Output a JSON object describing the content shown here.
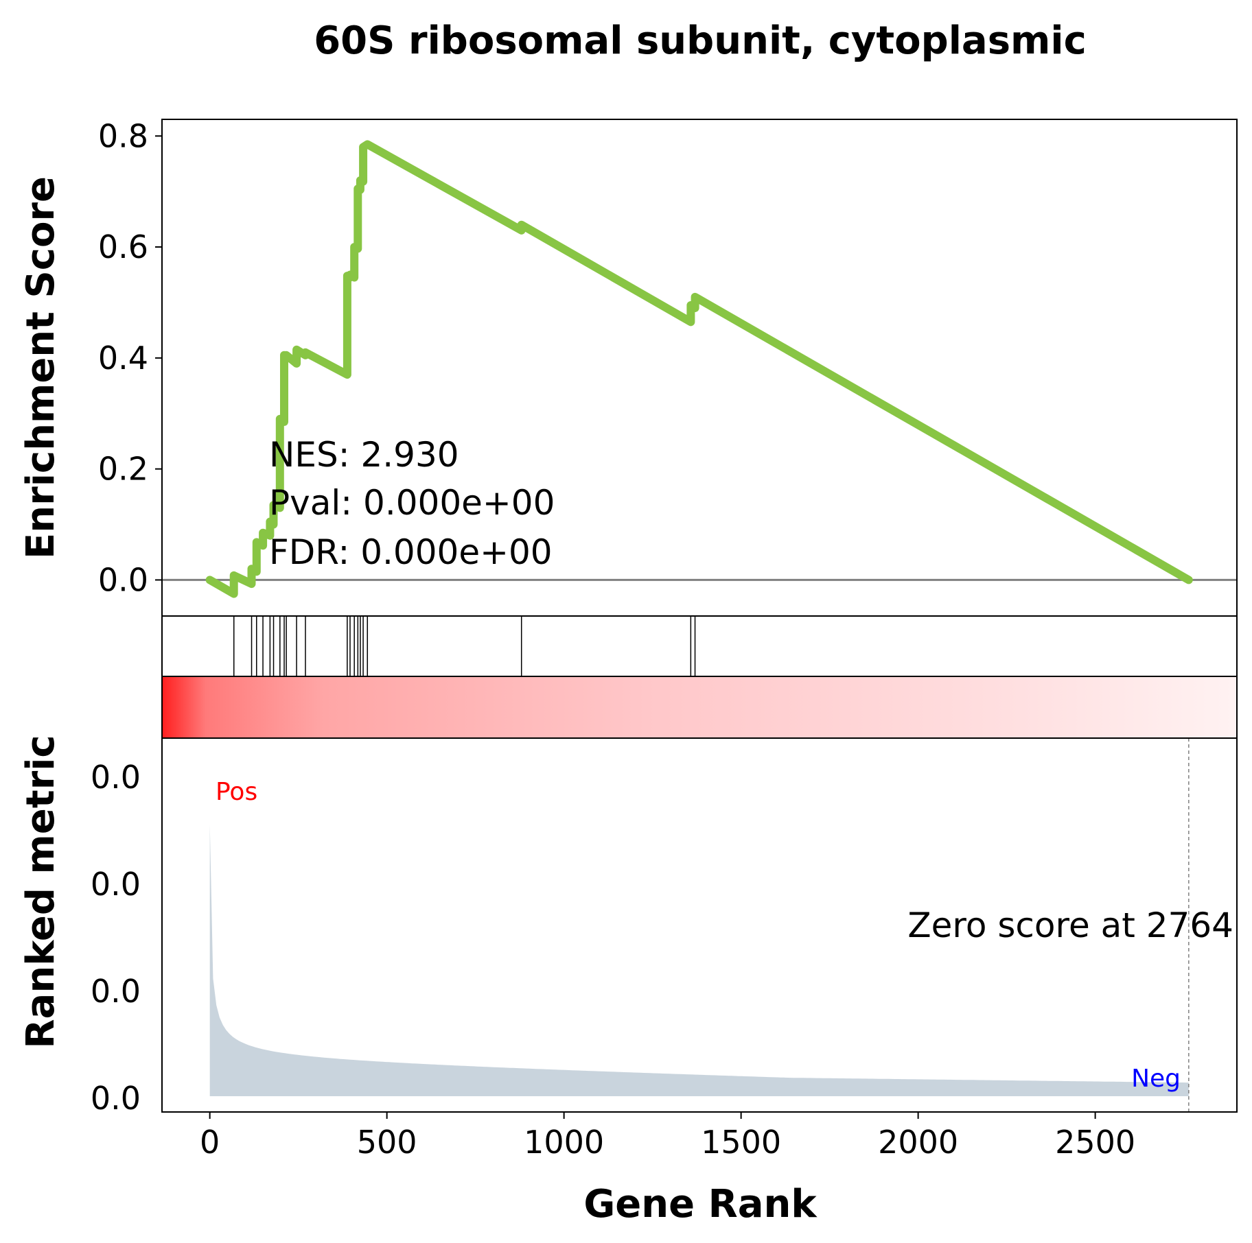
{
  "chart_data": {
    "type": "line",
    "title": "60S ribosomal subunit, cytoplasmic",
    "xlabel": "Gene Rank",
    "xlim": [
      -135,
      2900
    ],
    "x_ticks": [
      0,
      500,
      1000,
      1500,
      2000,
      2500
    ],
    "es_panel": {
      "ylabel": "Enrichment Score",
      "ylim": [
        -0.065,
        0.83
      ],
      "y_ticks": [
        0.0,
        0.2,
        0.4,
        0.6,
        0.8
      ],
      "y_tick_labels": [
        "0.0",
        "0.2",
        "0.4",
        "0.6",
        "0.8"
      ],
      "color": "#88c544",
      "zero_line_color": "#808080",
      "series": [
        {
          "x": [
            0,
            68,
            68,
            118,
            118,
            132,
            132,
            150,
            150,
            170,
            170,
            180,
            180,
            198,
            198,
            210,
            210,
            216,
            216,
            245,
            245,
            270,
            270,
            388,
            388,
            396,
            396,
            408,
            408,
            418,
            418,
            425,
            425,
            433,
            433,
            445,
            445,
            880,
            880,
            1358,
            1358,
            1370,
            1370,
            2764
          ],
          "y": [
            0.0,
            -0.025,
            0.008,
            -0.007,
            0.02,
            0.015,
            0.068,
            0.062,
            0.085,
            0.08,
            0.105,
            0.1,
            0.135,
            0.13,
            0.29,
            0.285,
            0.405,
            0.4,
            0.405,
            0.39,
            0.415,
            0.405,
            0.41,
            0.37,
            0.548,
            0.545,
            0.55,
            0.545,
            0.6,
            0.597,
            0.705,
            0.703,
            0.72,
            0.718,
            0.78,
            0.785,
            0.785,
            0.63,
            0.64,
            0.465,
            0.495,
            0.49,
            0.51,
            0.0
          ]
        }
      ],
      "annotation": {
        "nes": "NES: 2.930",
        "pval": "Pval: 0.000e+00",
        "fdr": "FDR: 0.000e+00"
      }
    },
    "hits_panel": {
      "hit_positions": [
        68,
        118,
        132,
        150,
        170,
        180,
        198,
        210,
        216,
        245,
        270,
        388,
        396,
        408,
        418,
        425,
        433,
        445,
        880,
        1358,
        1370
      ]
    },
    "heatmap_panel": {
      "color_low": "#fff2f2",
      "color_high": "#ff2020"
    },
    "ranked_panel": {
      "ylabel": "Ranked metric",
      "y_tick_labels": [
        "0.0",
        "0.0",
        "0.0",
        "0.0"
      ],
      "fill_color": "#c9d4dd",
      "pos_label": "Pos",
      "neg_label": "Neg",
      "pos_color": "#ff0000",
      "neg_color": "#0000ff",
      "zero_score_text": "Zero score at 2764",
      "zero_score_rank": 2764
    }
  }
}
